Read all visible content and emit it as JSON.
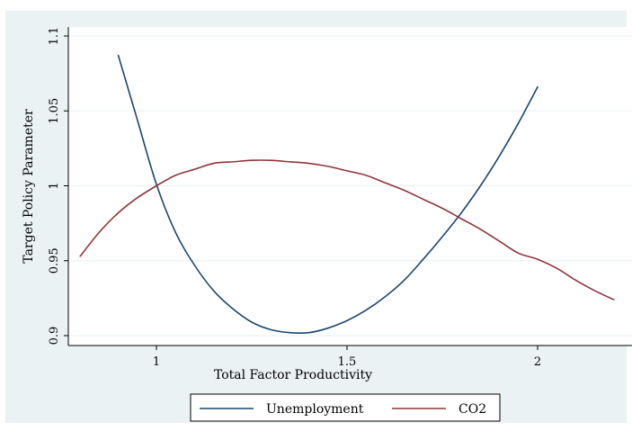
{
  "chart_data": {
    "type": "line",
    "title": "",
    "xlabel": "Total Factor Productivity",
    "ylabel": "Target Policy Parameter",
    "xlim": [
      0.8,
      2.25
    ],
    "ylim": [
      0.895,
      1.11
    ],
    "xticks": [
      1,
      1.5,
      2
    ],
    "xtick_labels": [
      "1",
      "1.5",
      "2"
    ],
    "yticks": [
      0.9,
      0.95,
      1,
      1.05,
      1.1
    ],
    "ytick_labels": [
      "0.9",
      "0.95",
      "1",
      "1.05",
      "1.1"
    ],
    "grid": true,
    "legend_position": "bottom",
    "series": [
      {
        "name": "Unemployment",
        "color": "#1a476f",
        "x": [
          0.9,
          0.95,
          1.0,
          1.05,
          1.1,
          1.15,
          1.2,
          1.25,
          1.3,
          1.35,
          1.4,
          1.45,
          1.5,
          1.55,
          1.6,
          1.65,
          1.7,
          1.75,
          1.8,
          1.85,
          1.9,
          1.95,
          2.0
        ],
        "y": [
          1.087,
          1.044,
          1.001,
          0.969,
          0.947,
          0.93,
          0.918,
          0.909,
          0.904,
          0.902,
          0.902,
          0.905,
          0.91,
          0.917,
          0.926,
          0.937,
          0.951,
          0.966,
          0.982,
          1.0,
          1.02,
          1.042,
          1.066
        ]
      },
      {
        "name": "CO2",
        "color": "#90353b",
        "x": [
          0.8,
          0.85,
          0.9,
          0.95,
          1.0,
          1.05,
          1.1,
          1.15,
          1.2,
          1.25,
          1.3,
          1.35,
          1.4,
          1.45,
          1.5,
          1.55,
          1.6,
          1.65,
          1.7,
          1.75,
          1.8,
          1.85,
          1.9,
          1.95,
          2.0,
          2.05,
          2.1,
          2.15,
          2.2
        ],
        "y": [
          0.953,
          0.969,
          0.982,
          0.992,
          1.0,
          1.007,
          1.011,
          1.015,
          1.016,
          1.017,
          1.017,
          1.016,
          1.015,
          1.013,
          1.01,
          1.007,
          1.002,
          0.997,
          0.991,
          0.985,
          0.978,
          0.971,
          0.963,
          0.955,
          0.951,
          0.945,
          0.937,
          0.93,
          0.924
        ]
      }
    ]
  }
}
